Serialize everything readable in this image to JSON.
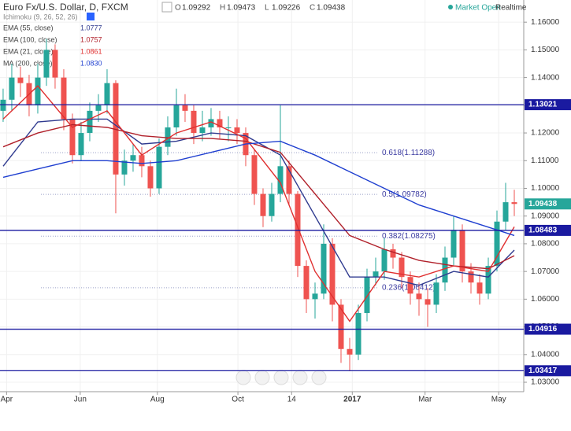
{
  "chart_data": {
    "type": "candlestick",
    "title": "Euro Fx/U.S. Dollar, D, FXCM",
    "ohlc": {
      "O": 1.09292,
      "H": 1.09473,
      "L": 1.09226,
      "C": 1.09438
    },
    "status": "Market Open",
    "feed": "Realtime",
    "ichimoku_label": "Ichimoku (9, 26, 52, 26)",
    "up_color": "#26a69a",
    "down_color": "#ef5350",
    "open": [
      1.128,
      1.132,
      1.14,
      1.138,
      1.13,
      1.14,
      1.15,
      1.14,
      1.125,
      1.112,
      1.12,
      1.128,
      1.13,
      1.138,
      1.105,
      1.11,
      1.112,
      1.108,
      1.1,
      1.115,
      1.122,
      1.13,
      1.128,
      1.12,
      1.122,
      1.125,
      1.122,
      1.122,
      1.12,
      1.112,
      1.098,
      1.09,
      1.098,
      1.108,
      1.098,
      1.072,
      1.06,
      1.062,
      1.08,
      1.058,
      1.042,
      1.04,
      1.055,
      1.068,
      1.07,
      1.078,
      1.075,
      1.068,
      1.062,
      1.06,
      1.058,
      1.066,
      1.075,
      1.085,
      1.07,
      1.066,
      1.062,
      1.072,
      1.088,
      1.095
    ],
    "high": [
      1.136,
      1.145,
      1.144,
      1.141,
      1.145,
      1.154,
      1.152,
      1.143,
      1.127,
      1.124,
      1.131,
      1.134,
      1.143,
      1.139,
      1.114,
      1.116,
      1.115,
      1.11,
      1.118,
      1.126,
      1.136,
      1.134,
      1.13,
      1.128,
      1.129,
      1.128,
      1.126,
      1.125,
      1.122,
      1.114,
      1.1,
      1.102,
      1.13,
      1.11,
      1.099,
      1.074,
      1.066,
      1.087,
      1.082,
      1.06,
      1.046,
      1.058,
      1.071,
      1.075,
      1.082,
      1.08,
      1.077,
      1.07,
      1.066,
      1.064,
      1.069,
      1.079,
      1.09,
      1.087,
      1.073,
      1.069,
      1.075,
      1.092,
      1.102,
      1.0995
    ],
    "low": [
      1.124,
      1.128,
      1.133,
      1.126,
      1.127,
      1.137,
      1.136,
      1.121,
      1.109,
      1.11,
      1.117,
      1.124,
      1.127,
      1.091,
      1.101,
      1.106,
      1.104,
      1.097,
      1.098,
      1.112,
      1.119,
      1.124,
      1.116,
      1.117,
      1.119,
      1.118,
      1.117,
      1.116,
      1.108,
      1.094,
      1.086,
      1.088,
      1.095,
      1.094,
      1.068,
      1.055,
      1.053,
      1.06,
      1.052,
      1.037,
      1.034,
      1.038,
      1.052,
      1.065,
      1.067,
      1.071,
      1.064,
      1.058,
      1.054,
      1.05,
      1.055,
      1.063,
      1.072,
      1.066,
      1.062,
      1.058,
      1.06,
      1.07,
      1.085,
      1.09
    ],
    "close": [
      1.132,
      1.14,
      1.138,
      1.13,
      1.14,
      1.15,
      1.14,
      1.125,
      1.112,
      1.12,
      1.128,
      1.13,
      1.138,
      1.105,
      1.11,
      1.112,
      1.108,
      1.1,
      1.115,
      1.122,
      1.13,
      1.128,
      1.12,
      1.122,
      1.125,
      1.122,
      1.122,
      1.12,
      1.112,
      1.098,
      1.09,
      1.098,
      1.108,
      1.098,
      1.072,
      1.06,
      1.062,
      1.08,
      1.058,
      1.042,
      1.04,
      1.055,
      1.068,
      1.07,
      1.078,
      1.075,
      1.068,
      1.062,
      1.06,
      1.058,
      1.066,
      1.075,
      1.085,
      1.07,
      1.066,
      1.062,
      1.072,
      1.088,
      1.095,
      1.09438
    ],
    "indicator_x": [
      0,
      4,
      8,
      12,
      16,
      20,
      24,
      28,
      32,
      36,
      40,
      44,
      48,
      52,
      56,
      59
    ],
    "series": [
      {
        "name": "EMA (55, close)",
        "color": "#2f3a8f",
        "values": [
          1.108,
          1.124,
          1.125,
          1.125,
          1.116,
          1.117,
          1.12,
          1.119,
          1.112,
          1.09,
          1.068,
          1.068,
          1.065,
          1.07,
          1.068,
          1.0777
        ],
        "value_label": "1.0777"
      },
      {
        "name": "EMA (100, close)",
        "color": "#b0202a",
        "values": [
          1.115,
          1.12,
          1.123,
          1.122,
          1.119,
          1.118,
          1.118,
          1.117,
          1.113,
          1.098,
          1.083,
          1.078,
          1.074,
          1.072,
          1.071,
          1.0757
        ],
        "value_label": "1.0757"
      },
      {
        "name": "EMA (21, close)",
        "color": "#e03030",
        "values": [
          1.125,
          1.137,
          1.122,
          1.128,
          1.112,
          1.12,
          1.124,
          1.118,
          1.102,
          1.07,
          1.052,
          1.07,
          1.068,
          1.072,
          1.07,
          1.0861
        ],
        "value_label": "1.0861"
      },
      {
        "name": "MA (200, close)",
        "color": "#1f3fd0",
        "values": [
          1.104,
          1.107,
          1.11,
          1.11,
          1.109,
          1.11,
          1.113,
          1.116,
          1.117,
          1.112,
          1.106,
          1.1,
          1.094,
          1.09,
          1.086,
          1.083
        ],
        "value_label": "1.0830"
      }
    ],
    "levels": [
      1.13021,
      1.08483,
      1.04916,
      1.03417
    ],
    "level_color": "#1a1aa0",
    "fib": [
      {
        "value": 1.11288,
        "label": "0.618(1.11288)"
      },
      {
        "value": 1.09782,
        "label": "0.5(1.09782)"
      },
      {
        "value": 1.08275,
        "label": "0.382(1.08275)"
      },
      {
        "value": 1.06412,
        "label": "0.236(1.06412)"
      }
    ],
    "last_price": 1.09438,
    "xlim": [
      -0.36,
      60.09
    ],
    "ylim": [
      1.0266,
      1.168
    ],
    "xticks": [
      {
        "value": 0.4,
        "label": "Apr"
      },
      {
        "value": 8.9,
        "label": "Jun"
      },
      {
        "value": 17.8,
        "label": "Aug"
      },
      {
        "value": 27.1,
        "label": "Oct"
      },
      {
        "value": 33.3,
        "label": "14"
      },
      {
        "value": 40.3,
        "label": "2017"
      },
      {
        "value": 48.7,
        "label": "Mar"
      },
      {
        "value": 57.2,
        "label": "May"
      }
    ],
    "yticks": [
      {
        "value": 1.03,
        "label": "1.03000"
      },
      {
        "value": 1.04,
        "label": "1.04000"
      },
      {
        "value": 1.05,
        "label": "1.05000"
      },
      {
        "value": 1.06,
        "label": "1.06000"
      },
      {
        "value": 1.07,
        "label": "1.07000"
      },
      {
        "value": 1.08,
        "label": "1.08000"
      },
      {
        "value": 1.09,
        "label": "1.09000"
      },
      {
        "value": 1.1,
        "label": "1.10000"
      },
      {
        "value": 1.11,
        "label": "1.11000"
      },
      {
        "value": 1.12,
        "label": "1.12000"
      },
      {
        "value": 1.13,
        "label": "1.13000"
      },
      {
        "value": 1.14,
        "label": "1.14000"
      },
      {
        "value": 1.15,
        "label": "1.15000"
      },
      {
        "value": 1.16,
        "label": "1.16000"
      }
    ]
  }
}
